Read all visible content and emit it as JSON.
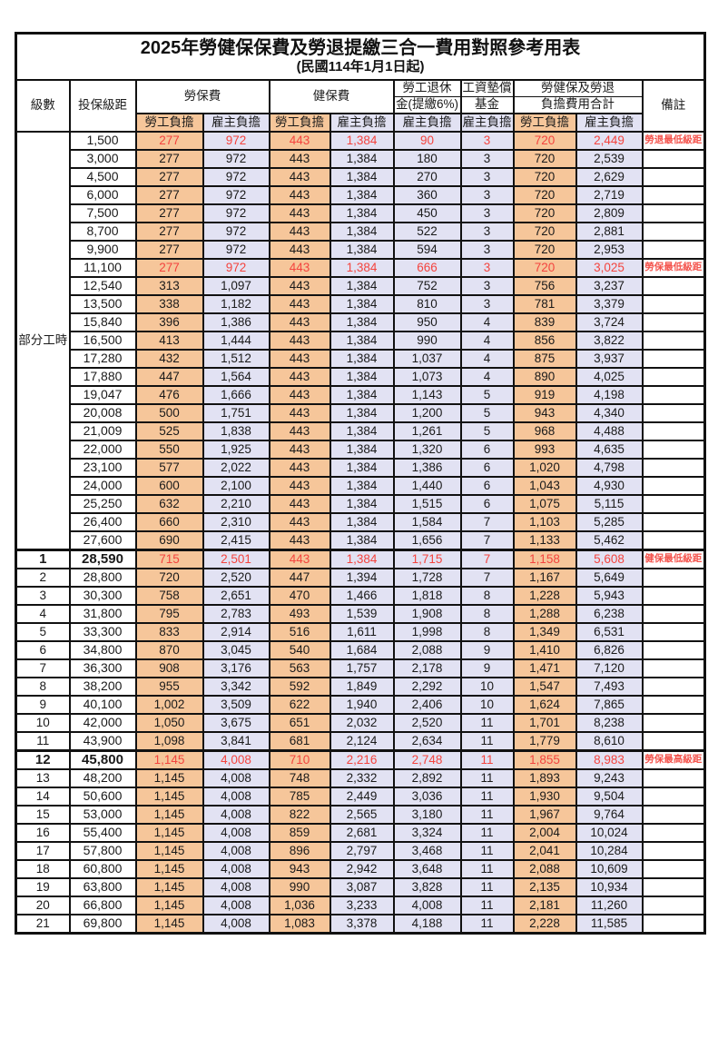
{
  "page": {
    "title": "2025年勞健保保費及勞退提繳三合一費用對照參考用表",
    "subtitle": "(民國114年1月1日起)"
  },
  "header": {
    "level": "級數",
    "salary": "投保級距",
    "labor_fee": "勞保費",
    "health_fee": "健保費",
    "pension_line1": "勞工退休",
    "pension_line2": "金(提繳6%)",
    "wage_fund_line1": "工資墊償",
    "wage_fund_line2": "基金",
    "total_line1": "勞健保及勞退",
    "total_line2": "負擔費用合計",
    "remark": "備註",
    "employee_burden": "勞工負擔",
    "employer_burden": "雇主負擔"
  },
  "part_time_label": "部分工時",
  "colors": {
    "employee_bg": "#F6C69A",
    "employer_bg": "#E2E2F3",
    "highlight_red": "#F4443E",
    "border": "#111111"
  },
  "rows": [
    {
      "level": "",
      "salary": "1,500",
      "labor_emp": "277",
      "labor_er": "972",
      "health_emp": "443",
      "health_er": "1,384",
      "pension_er": "90",
      "fund_er": "3",
      "total_emp": "720",
      "total_er": "2,449",
      "note": "勞退最低級距",
      "red": true,
      "bold": false
    },
    {
      "level": "",
      "salary": "3,000",
      "labor_emp": "277",
      "labor_er": "972",
      "health_emp": "443",
      "health_er": "1,384",
      "pension_er": "180",
      "fund_er": "3",
      "total_emp": "720",
      "total_er": "2,539",
      "note": "",
      "red": false,
      "bold": false
    },
    {
      "level": "",
      "salary": "4,500",
      "labor_emp": "277",
      "labor_er": "972",
      "health_emp": "443",
      "health_er": "1,384",
      "pension_er": "270",
      "fund_er": "3",
      "total_emp": "720",
      "total_er": "2,629",
      "note": "",
      "red": false,
      "bold": false
    },
    {
      "level": "",
      "salary": "6,000",
      "labor_emp": "277",
      "labor_er": "972",
      "health_emp": "443",
      "health_er": "1,384",
      "pension_er": "360",
      "fund_er": "3",
      "total_emp": "720",
      "total_er": "2,719",
      "note": "",
      "red": false,
      "bold": false
    },
    {
      "level": "",
      "salary": "7,500",
      "labor_emp": "277",
      "labor_er": "972",
      "health_emp": "443",
      "health_er": "1,384",
      "pension_er": "450",
      "fund_er": "3",
      "total_emp": "720",
      "total_er": "2,809",
      "note": "",
      "red": false,
      "bold": false
    },
    {
      "level": "",
      "salary": "8,700",
      "labor_emp": "277",
      "labor_er": "972",
      "health_emp": "443",
      "health_er": "1,384",
      "pension_er": "522",
      "fund_er": "3",
      "total_emp": "720",
      "total_er": "2,881",
      "note": "",
      "red": false,
      "bold": false
    },
    {
      "level": "",
      "salary": "9,900",
      "labor_emp": "277",
      "labor_er": "972",
      "health_emp": "443",
      "health_er": "1,384",
      "pension_er": "594",
      "fund_er": "3",
      "total_emp": "720",
      "total_er": "2,953",
      "note": "",
      "red": false,
      "bold": false
    },
    {
      "level": "",
      "salary": "11,100",
      "labor_emp": "277",
      "labor_er": "972",
      "health_emp": "443",
      "health_er": "1,384",
      "pension_er": "666",
      "fund_er": "3",
      "total_emp": "720",
      "total_er": "3,025",
      "note": "勞保最低級距",
      "red": true,
      "bold": false
    },
    {
      "level": "",
      "salary": "12,540",
      "labor_emp": "313",
      "labor_er": "1,097",
      "health_emp": "443",
      "health_er": "1,384",
      "pension_er": "752",
      "fund_er": "3",
      "total_emp": "756",
      "total_er": "3,237",
      "note": "",
      "red": false,
      "bold": false
    },
    {
      "level": "",
      "salary": "13,500",
      "labor_emp": "338",
      "labor_er": "1,182",
      "health_emp": "443",
      "health_er": "1,384",
      "pension_er": "810",
      "fund_er": "3",
      "total_emp": "781",
      "total_er": "3,379",
      "note": "",
      "red": false,
      "bold": false
    },
    {
      "level": "",
      "salary": "15,840",
      "labor_emp": "396",
      "labor_er": "1,386",
      "health_emp": "443",
      "health_er": "1,384",
      "pension_er": "950",
      "fund_er": "4",
      "total_emp": "839",
      "total_er": "3,724",
      "note": "",
      "red": false,
      "bold": false
    },
    {
      "level": "",
      "salary": "16,500",
      "labor_emp": "413",
      "labor_er": "1,444",
      "health_emp": "443",
      "health_er": "1,384",
      "pension_er": "990",
      "fund_er": "4",
      "total_emp": "856",
      "total_er": "3,822",
      "note": "",
      "red": false,
      "bold": false
    },
    {
      "level": "",
      "salary": "17,280",
      "labor_emp": "432",
      "labor_er": "1,512",
      "health_emp": "443",
      "health_er": "1,384",
      "pension_er": "1,037",
      "fund_er": "4",
      "total_emp": "875",
      "total_er": "3,937",
      "note": "",
      "red": false,
      "bold": false
    },
    {
      "level": "",
      "salary": "17,880",
      "labor_emp": "447",
      "labor_er": "1,564",
      "health_emp": "443",
      "health_er": "1,384",
      "pension_er": "1,073",
      "fund_er": "4",
      "total_emp": "890",
      "total_er": "4,025",
      "note": "",
      "red": false,
      "bold": false
    },
    {
      "level": "",
      "salary": "19,047",
      "labor_emp": "476",
      "labor_er": "1,666",
      "health_emp": "443",
      "health_er": "1,384",
      "pension_er": "1,143",
      "fund_er": "5",
      "total_emp": "919",
      "total_er": "4,198",
      "note": "",
      "red": false,
      "bold": false
    },
    {
      "level": "",
      "salary": "20,008",
      "labor_emp": "500",
      "labor_er": "1,751",
      "health_emp": "443",
      "health_er": "1,384",
      "pension_er": "1,200",
      "fund_er": "5",
      "total_emp": "943",
      "total_er": "4,340",
      "note": "",
      "red": false,
      "bold": false
    },
    {
      "level": "",
      "salary": "21,009",
      "labor_emp": "525",
      "labor_er": "1,838",
      "health_emp": "443",
      "health_er": "1,384",
      "pension_er": "1,261",
      "fund_er": "5",
      "total_emp": "968",
      "total_er": "4,488",
      "note": "",
      "red": false,
      "bold": false
    },
    {
      "level": "",
      "salary": "22,000",
      "labor_emp": "550",
      "labor_er": "1,925",
      "health_emp": "443",
      "health_er": "1,384",
      "pension_er": "1,320",
      "fund_er": "6",
      "total_emp": "993",
      "total_er": "4,635",
      "note": "",
      "red": false,
      "bold": false
    },
    {
      "level": "",
      "salary": "23,100",
      "labor_emp": "577",
      "labor_er": "2,022",
      "health_emp": "443",
      "health_er": "1,384",
      "pension_er": "1,386",
      "fund_er": "6",
      "total_emp": "1,020",
      "total_er": "4,798",
      "note": "",
      "red": false,
      "bold": false
    },
    {
      "level": "",
      "salary": "24,000",
      "labor_emp": "600",
      "labor_er": "2,100",
      "health_emp": "443",
      "health_er": "1,384",
      "pension_er": "1,440",
      "fund_er": "6",
      "total_emp": "1,043",
      "total_er": "4,930",
      "note": "",
      "red": false,
      "bold": false
    },
    {
      "level": "",
      "salary": "25,250",
      "labor_emp": "632",
      "labor_er": "2,210",
      "health_emp": "443",
      "health_er": "1,384",
      "pension_er": "1,515",
      "fund_er": "6",
      "total_emp": "1,075",
      "total_er": "5,115",
      "note": "",
      "red": false,
      "bold": false
    },
    {
      "level": "",
      "salary": "26,400",
      "labor_emp": "660",
      "labor_er": "2,310",
      "health_emp": "443",
      "health_er": "1,384",
      "pension_er": "1,584",
      "fund_er": "7",
      "total_emp": "1,103",
      "total_er": "5,285",
      "note": "",
      "red": false,
      "bold": false
    },
    {
      "level": "",
      "salary": "27,600",
      "labor_emp": "690",
      "labor_er": "2,415",
      "health_emp": "443",
      "health_er": "1,384",
      "pension_er": "1,656",
      "fund_er": "7",
      "total_emp": "1,133",
      "total_er": "5,462",
      "note": "",
      "red": false,
      "bold": false
    },
    {
      "level": "1",
      "salary": "28,590",
      "labor_emp": "715",
      "labor_er": "2,501",
      "health_emp": "443",
      "health_er": "1,384",
      "pension_er": "1,715",
      "fund_er": "7",
      "total_emp": "1,158",
      "total_er": "5,608",
      "note": "健保最低級距",
      "red": true,
      "bold": true
    },
    {
      "level": "2",
      "salary": "28,800",
      "labor_emp": "720",
      "labor_er": "2,520",
      "health_emp": "447",
      "health_er": "1,394",
      "pension_er": "1,728",
      "fund_er": "7",
      "total_emp": "1,167",
      "total_er": "5,649",
      "note": "",
      "red": false,
      "bold": false
    },
    {
      "level": "3",
      "salary": "30,300",
      "labor_emp": "758",
      "labor_er": "2,651",
      "health_emp": "470",
      "health_er": "1,466",
      "pension_er": "1,818",
      "fund_er": "8",
      "total_emp": "1,228",
      "total_er": "5,943",
      "note": "",
      "red": false,
      "bold": false
    },
    {
      "level": "4",
      "salary": "31,800",
      "labor_emp": "795",
      "labor_er": "2,783",
      "health_emp": "493",
      "health_er": "1,539",
      "pension_er": "1,908",
      "fund_er": "8",
      "total_emp": "1,288",
      "total_er": "6,238",
      "note": "",
      "red": false,
      "bold": false
    },
    {
      "level": "5",
      "salary": "33,300",
      "labor_emp": "833",
      "labor_er": "2,914",
      "health_emp": "516",
      "health_er": "1,611",
      "pension_er": "1,998",
      "fund_er": "8",
      "total_emp": "1,349",
      "total_er": "6,531",
      "note": "",
      "red": false,
      "bold": false
    },
    {
      "level": "6",
      "salary": "34,800",
      "labor_emp": "870",
      "labor_er": "3,045",
      "health_emp": "540",
      "health_er": "1,684",
      "pension_er": "2,088",
      "fund_er": "9",
      "total_emp": "1,410",
      "total_er": "6,826",
      "note": "",
      "red": false,
      "bold": false
    },
    {
      "level": "7",
      "salary": "36,300",
      "labor_emp": "908",
      "labor_er": "3,176",
      "health_emp": "563",
      "health_er": "1,757",
      "pension_er": "2,178",
      "fund_er": "9",
      "total_emp": "1,471",
      "total_er": "7,120",
      "note": "",
      "red": false,
      "bold": false
    },
    {
      "level": "8",
      "salary": "38,200",
      "labor_emp": "955",
      "labor_er": "3,342",
      "health_emp": "592",
      "health_er": "1,849",
      "pension_er": "2,292",
      "fund_er": "10",
      "total_emp": "1,547",
      "total_er": "7,493",
      "note": "",
      "red": false,
      "bold": false
    },
    {
      "level": "9",
      "salary": "40,100",
      "labor_emp": "1,002",
      "labor_er": "3,509",
      "health_emp": "622",
      "health_er": "1,940",
      "pension_er": "2,406",
      "fund_er": "10",
      "total_emp": "1,624",
      "total_er": "7,865",
      "note": "",
      "red": false,
      "bold": false
    },
    {
      "level": "10",
      "salary": "42,000",
      "labor_emp": "1,050",
      "labor_er": "3,675",
      "health_emp": "651",
      "health_er": "2,032",
      "pension_er": "2,520",
      "fund_er": "11",
      "total_emp": "1,701",
      "total_er": "8,238",
      "note": "",
      "red": false,
      "bold": false
    },
    {
      "level": "11",
      "salary": "43,900",
      "labor_emp": "1,098",
      "labor_er": "3,841",
      "health_emp": "681",
      "health_er": "2,124",
      "pension_er": "2,634",
      "fund_er": "11",
      "total_emp": "1,779",
      "total_er": "8,610",
      "note": "",
      "red": false,
      "bold": false
    },
    {
      "level": "12",
      "salary": "45,800",
      "labor_emp": "1,145",
      "labor_er": "4,008",
      "health_emp": "710",
      "health_er": "2,216",
      "pension_er": "2,748",
      "fund_er": "11",
      "total_emp": "1,855",
      "total_er": "8,983",
      "note": "勞保最高級距",
      "red": true,
      "bold": true
    },
    {
      "level": "13",
      "salary": "48,200",
      "labor_emp": "1,145",
      "labor_er": "4,008",
      "health_emp": "748",
      "health_er": "2,332",
      "pension_er": "2,892",
      "fund_er": "11",
      "total_emp": "1,893",
      "total_er": "9,243",
      "note": "",
      "red": false,
      "bold": false
    },
    {
      "level": "14",
      "salary": "50,600",
      "labor_emp": "1,145",
      "labor_er": "4,008",
      "health_emp": "785",
      "health_er": "2,449",
      "pension_er": "3,036",
      "fund_er": "11",
      "total_emp": "1,930",
      "total_er": "9,504",
      "note": "",
      "red": false,
      "bold": false
    },
    {
      "level": "15",
      "salary": "53,000",
      "labor_emp": "1,145",
      "labor_er": "4,008",
      "health_emp": "822",
      "health_er": "2,565",
      "pension_er": "3,180",
      "fund_er": "11",
      "total_emp": "1,967",
      "total_er": "9,764",
      "note": "",
      "red": false,
      "bold": false
    },
    {
      "level": "16",
      "salary": "55,400",
      "labor_emp": "1,145",
      "labor_er": "4,008",
      "health_emp": "859",
      "health_er": "2,681",
      "pension_er": "3,324",
      "fund_er": "11",
      "total_emp": "2,004",
      "total_er": "10,024",
      "note": "",
      "red": false,
      "bold": false
    },
    {
      "level": "17",
      "salary": "57,800",
      "labor_emp": "1,145",
      "labor_er": "4,008",
      "health_emp": "896",
      "health_er": "2,797",
      "pension_er": "3,468",
      "fund_er": "11",
      "total_emp": "2,041",
      "total_er": "10,284",
      "note": "",
      "red": false,
      "bold": false
    },
    {
      "level": "18",
      "salary": "60,800",
      "labor_emp": "1,145",
      "labor_er": "4,008",
      "health_emp": "943",
      "health_er": "2,942",
      "pension_er": "3,648",
      "fund_er": "11",
      "total_emp": "2,088",
      "total_er": "10,609",
      "note": "",
      "red": false,
      "bold": false
    },
    {
      "level": "19",
      "salary": "63,800",
      "labor_emp": "1,145",
      "labor_er": "4,008",
      "health_emp": "990",
      "health_er": "3,087",
      "pension_er": "3,828",
      "fund_er": "11",
      "total_emp": "2,135",
      "total_er": "10,934",
      "note": "",
      "red": false,
      "bold": false
    },
    {
      "level": "20",
      "salary": "66,800",
      "labor_emp": "1,145",
      "labor_er": "4,008",
      "health_emp": "1,036",
      "health_er": "3,233",
      "pension_er": "4,008",
      "fund_er": "11",
      "total_emp": "2,181",
      "total_er": "11,260",
      "note": "",
      "red": false,
      "bold": false
    },
    {
      "level": "21",
      "salary": "69,800",
      "labor_emp": "1,145",
      "labor_er": "4,008",
      "health_emp": "1,083",
      "health_er": "3,378",
      "pension_er": "4,188",
      "fund_er": "11",
      "total_emp": "2,228",
      "total_er": "11,585",
      "note": "",
      "red": false,
      "bold": false
    }
  ]
}
